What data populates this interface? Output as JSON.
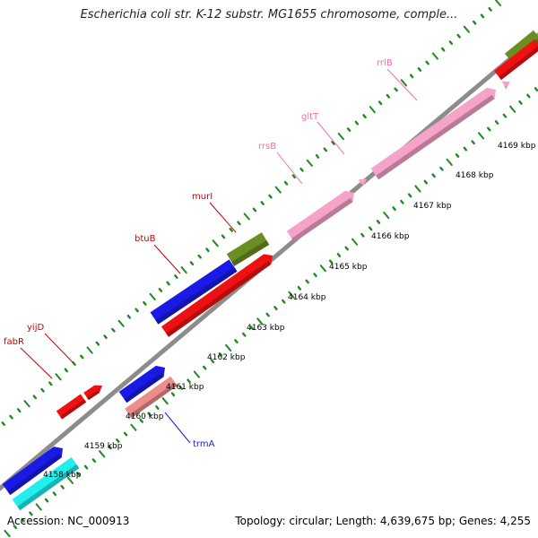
{
  "title": "Escherichia coli str. K-12 substr. MG1655 chromosome, comple...",
  "footer": {
    "accession": "Accession: NC_000913",
    "summary": "Topology: circular; Length: 4,639,675 bp; Genes: 4,255"
  },
  "colors": {
    "backbone": "#8c8c8c",
    "tick": "#1f8a1f",
    "blue": "#1a1ae6",
    "red": "#ee1111",
    "pink": "#f5a3c8",
    "olive": "#6b8e23",
    "cyan": "#22eeee",
    "salmon": "#ef8c8c"
  },
  "scale_labels": [
    "4158 kbp",
    "4159 kbp",
    "4160 kbp",
    "4161 kbp",
    "4162 kbp",
    "4163 kbp",
    "4164 kbp",
    "4165 kbp",
    "4166 kbp",
    "4167 kbp",
    "4168 kbp",
    "4169 kbp"
  ],
  "gene_labels": [
    {
      "id": "fabR",
      "text": "fabR",
      "color": "#cc0000"
    },
    {
      "id": "yijD",
      "text": "yijD",
      "color": "#cc0000"
    },
    {
      "id": "btuB",
      "text": "btuB",
      "color": "#cc0000"
    },
    {
      "id": "murI",
      "text": "murI",
      "color": "#cc0000"
    },
    {
      "id": "rrsB",
      "text": "rrsB",
      "color": "#f06ea8"
    },
    {
      "id": "gltT",
      "text": "gltT",
      "color": "#f06ea8"
    },
    {
      "id": "rrlB",
      "text": "rrlB",
      "color": "#f06ea8"
    },
    {
      "id": "trmA",
      "text": "trmA",
      "color": "#1a1ae6"
    }
  ]
}
